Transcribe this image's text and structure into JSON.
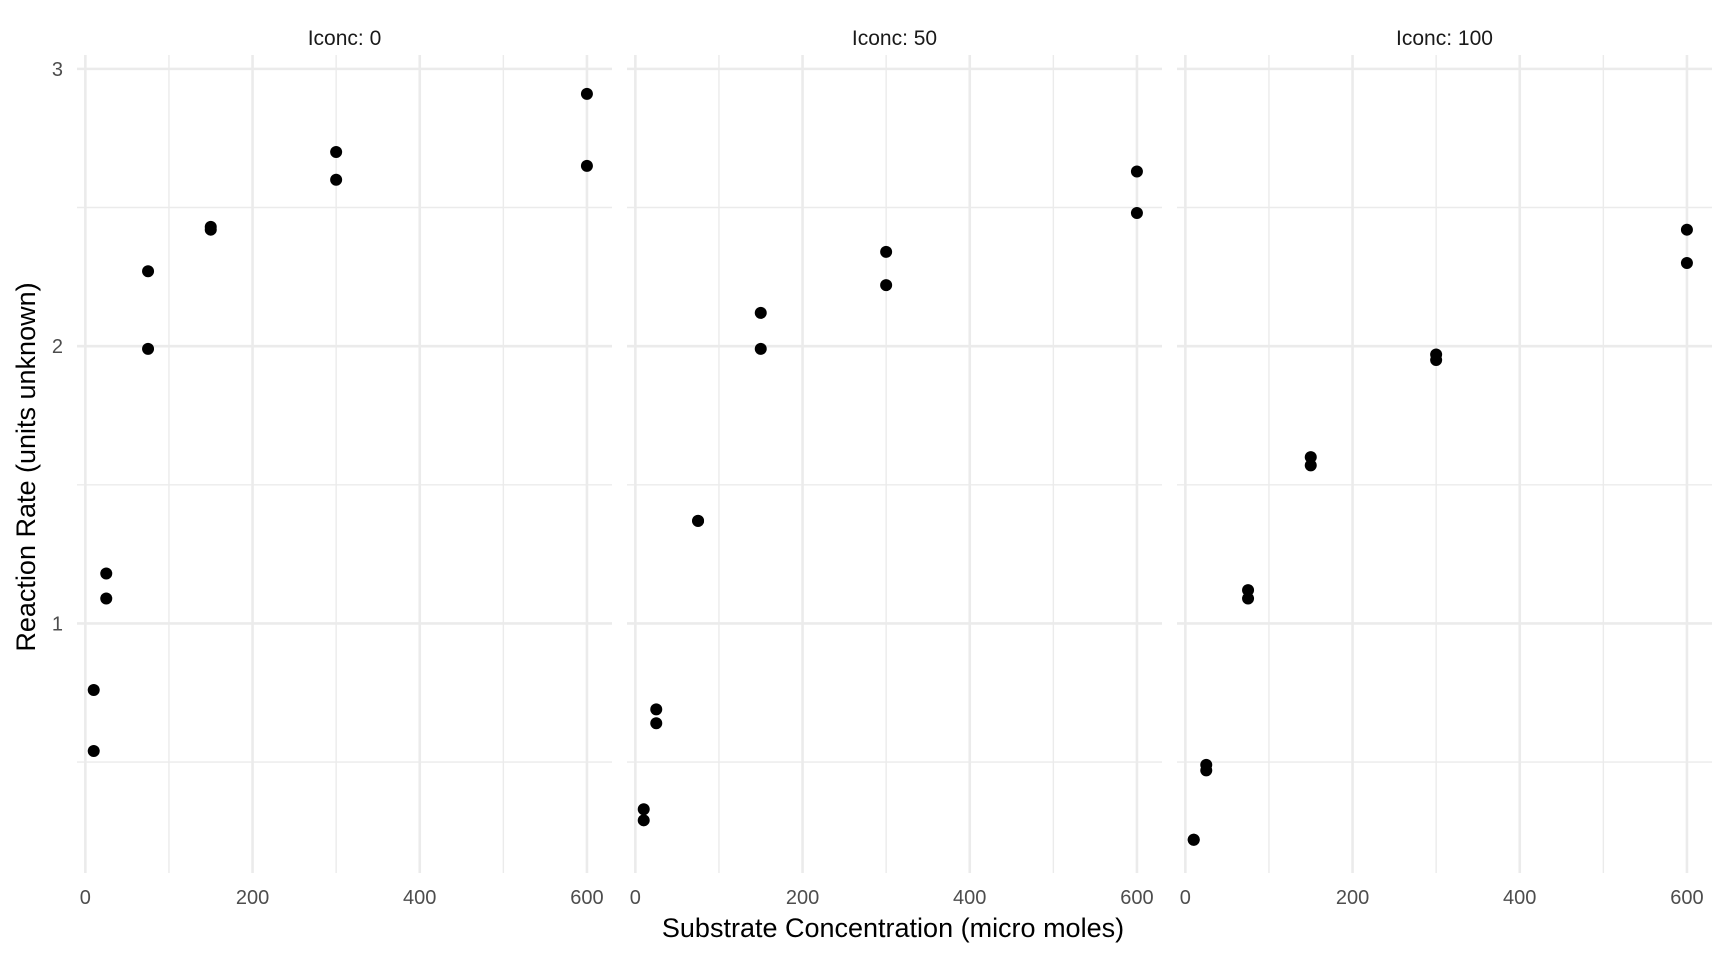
{
  "chart_data": {
    "type": "scatter",
    "facet_label_prefix": "Iconc: ",
    "xlabel": "Substrate Concentration (micro moles)",
    "ylabel": "Reaction Rate (units unknown)",
    "xlim": [
      -10,
      630
    ],
    "ylim": [
      0.1,
      3.05
    ],
    "xticks": [
      0,
      200,
      400,
      600
    ],
    "xminor": [
      100,
      300,
      500
    ],
    "yticks": [
      1,
      2,
      3
    ],
    "yminor": [
      0.5,
      1.5,
      2.5
    ],
    "grid": true,
    "panels": [
      {
        "label": "Iconc: 0",
        "x": [
          10,
          10,
          25,
          25,
          75,
          75,
          150,
          150,
          300,
          300,
          600,
          600
        ],
        "y": [
          0.76,
          0.54,
          1.18,
          1.09,
          2.27,
          1.99,
          2.43,
          2.42,
          2.7,
          2.6,
          2.91,
          2.65
        ]
      },
      {
        "label": "Iconc: 50",
        "x": [
          10,
          10,
          25,
          25,
          75,
          75,
          150,
          150,
          300,
          300,
          600,
          600
        ],
        "y": [
          0.33,
          0.29,
          0.69,
          0.64,
          1.37,
          1.37,
          2.12,
          1.99,
          2.34,
          2.22,
          2.63,
          2.48
        ]
      },
      {
        "label": "Iconc: 100",
        "x": [
          10,
          10,
          25,
          25,
          75,
          75,
          150,
          150,
          300,
          300,
          600,
          600
        ],
        "y": [
          0.22,
          0.22,
          0.49,
          0.47,
          1.12,
          1.09,
          1.6,
          1.57,
          1.97,
          1.95,
          2.42,
          2.3
        ]
      }
    ]
  }
}
